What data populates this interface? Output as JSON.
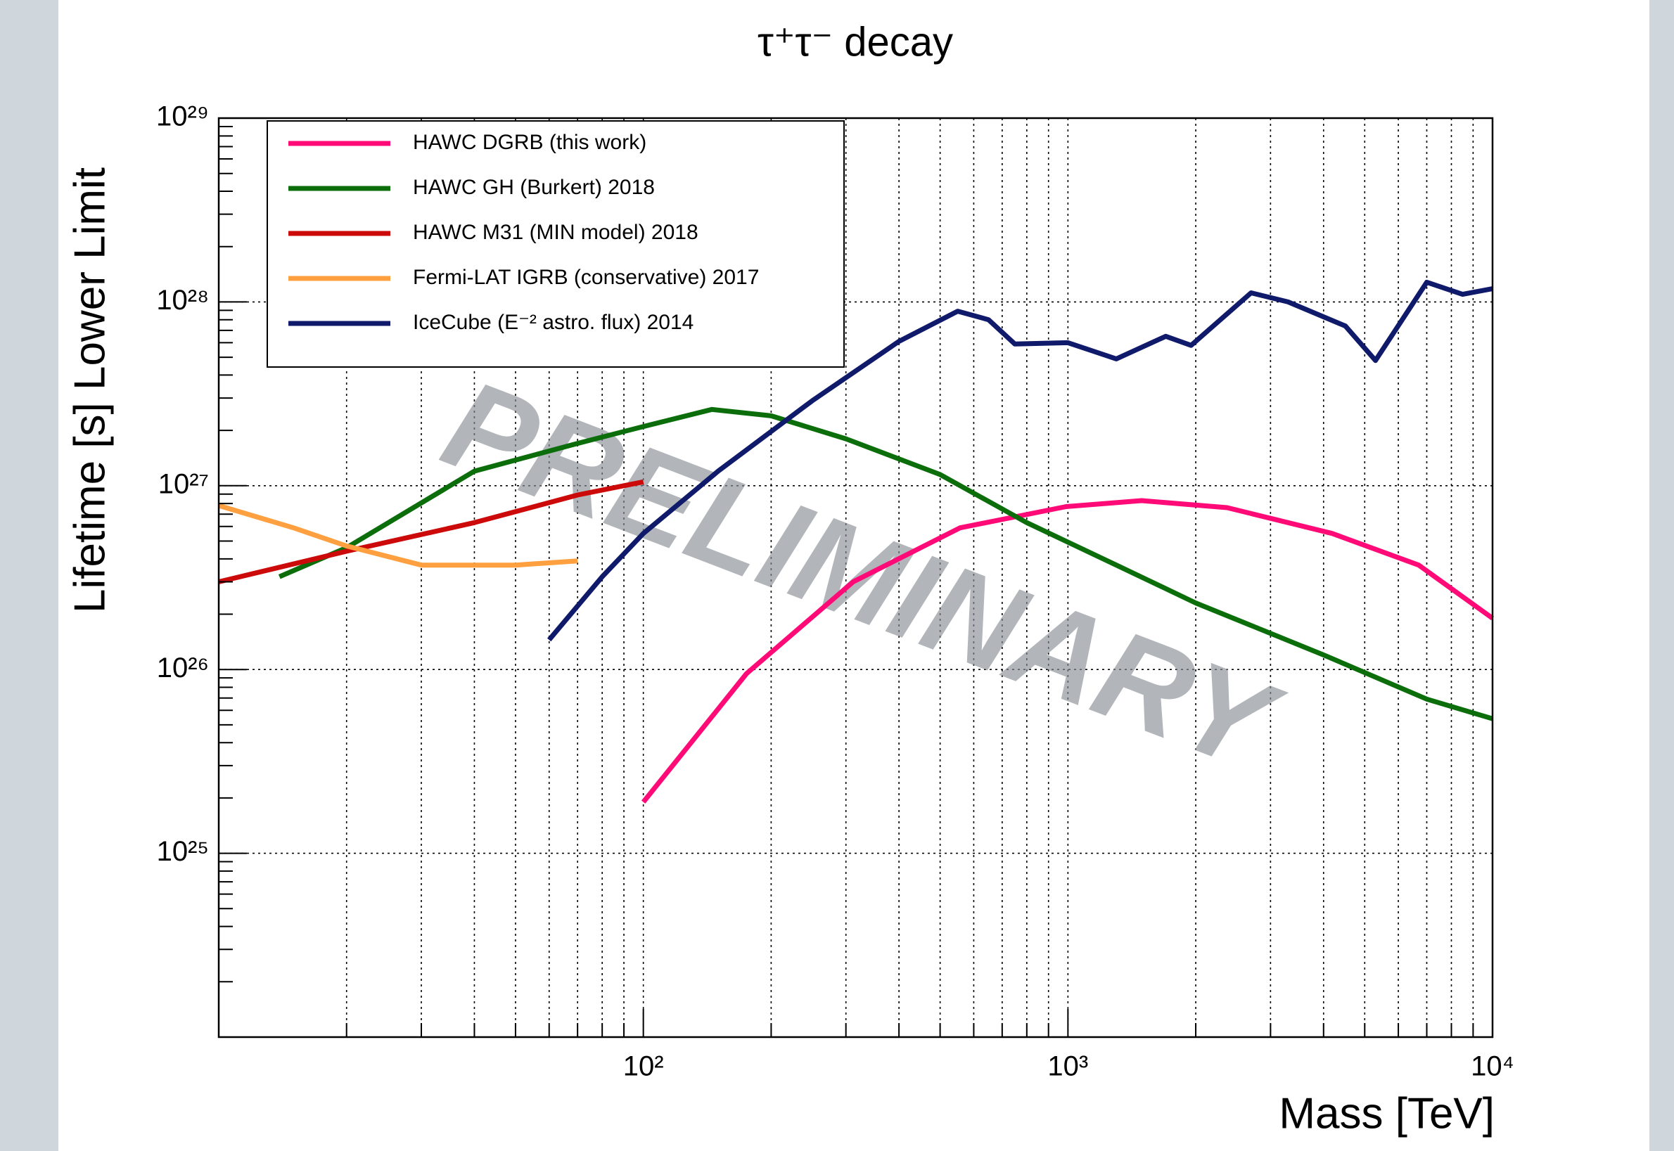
{
  "chart_data": {
    "type": "line",
    "title": "τ⁺τ⁻ decay",
    "x_label": "Mass [TeV]",
    "y_label": "Lifetime [s] Lower Limit",
    "annotation": "PRELIMINARY",
    "log_x": true,
    "log_y": true,
    "grid": true,
    "legend_position": "top-left",
    "xlim": [
      10,
      10000
    ],
    "ylim": [
      1e+24,
      1e+29
    ],
    "xticks": [
      {
        "value": 100,
        "label": "10²"
      },
      {
        "value": 1000,
        "label": "10³"
      },
      {
        "value": 10000,
        "label": "10⁴"
      }
    ],
    "xminorticks": [
      20,
      30,
      40,
      50,
      60,
      70,
      80,
      90,
      200,
      300,
      400,
      500,
      600,
      700,
      800,
      900,
      2000,
      3000,
      4000,
      5000,
      6000,
      7000,
      8000,
      9000
    ],
    "yticks": [
      {
        "value": 1e+25,
        "label": "10²⁵"
      },
      {
        "value": 1e+26,
        "label": "10²⁶"
      },
      {
        "value": 1e+27,
        "label": "10²⁷"
      },
      {
        "value": 1e+28,
        "label": "10²⁸"
      },
      {
        "value": 1e+29,
        "label": "10²⁹"
      }
    ],
    "yminorticks": [
      2e+24,
      3e+24,
      4e+24,
      5e+24,
      6e+24,
      7e+24,
      8e+24,
      9e+24,
      2e+25,
      3e+25,
      4e+25,
      5e+25,
      6e+25,
      7e+25,
      8e+25,
      9e+25,
      2e+26,
      3e+26,
      4e+26,
      5e+26,
      6e+26,
      7e+26,
      8e+26,
      9e+26,
      2e+27,
      3e+27,
      4e+27,
      5e+27,
      6e+27,
      7e+27,
      8e+27,
      9e+27,
      2e+28,
      3e+28,
      4e+28,
      5e+28,
      6e+28,
      7e+28,
      8e+28,
      9e+28
    ],
    "series": [
      {
        "name": "HAWC DGRB (this work)",
        "color": "#ff0a77",
        "x": [
          100,
          175,
          312,
          557,
          990,
          1490,
          2370,
          4190,
          6700,
          10000
        ],
        "values": [
          1.9e+25,
          9.5e+25,
          3e+26,
          5.9e+26,
          7.7e+26,
          8.3e+26,
          7.6e+26,
          5.5e+26,
          3.7e+26,
          1.9e+26
        ]
      },
      {
        "name": "HAWC GH (Burkert) 2018",
        "color": "#0b6e0b",
        "x": [
          13.9,
          20,
          40,
          70,
          100,
          145,
          200,
          300,
          500,
          800,
          1300,
          2000,
          4000,
          7000,
          10000
        ],
        "values": [
          3.2e+26,
          4.6e+26,
          1.2e+27,
          1.7e+27,
          2.1e+27,
          2.6e+27,
          2.4e+27,
          1.8e+27,
          1.15e+27,
          6.3e+26,
          3.7e+26,
          2.3e+26,
          1.2e+26,
          6.9e+25,
          5.4e+25
        ]
      },
      {
        "name": "HAWC M31 (MIN model) 2018",
        "color": "#cc0a0a",
        "x": [
          10,
          20,
          40,
          70,
          100
        ],
        "values": [
          3e+26,
          4.4e+26,
          6.3e+26,
          8.9e+26,
          1.05e+27
        ]
      },
      {
        "name": "Fermi-LAT IGRB (conservative) 2017",
        "color": "#ffa040",
        "x": [
          10,
          15,
          20,
          30,
          50,
          70
        ],
        "values": [
          7.8e+26,
          5.9e+26,
          4.7e+26,
          3.7e+26,
          3.7e+26,
          3.9e+26
        ]
      },
      {
        "name": "IceCube (E⁻² astro. flux) 2014",
        "color": "#101a6a",
        "x": [
          60,
          80,
          100,
          150,
          250,
          400,
          550,
          650,
          750,
          1000,
          1300,
          1700,
          1950,
          2700,
          3300,
          4500,
          5300,
          7000,
          8500,
          10000
        ],
        "values": [
          1.45e+26,
          3.2e+26,
          5.5e+26,
          1.2e+27,
          2.9e+27,
          6.1e+27,
          8.9e+27,
          8e+27,
          5.9e+27,
          6e+27,
          4.9e+27,
          6.5e+27,
          5.8e+27,
          1.12e+28,
          1e+28,
          7.4e+27,
          4.8e+27,
          1.28e+28,
          1.1e+28,
          1.18e+28
        ]
      }
    ]
  }
}
